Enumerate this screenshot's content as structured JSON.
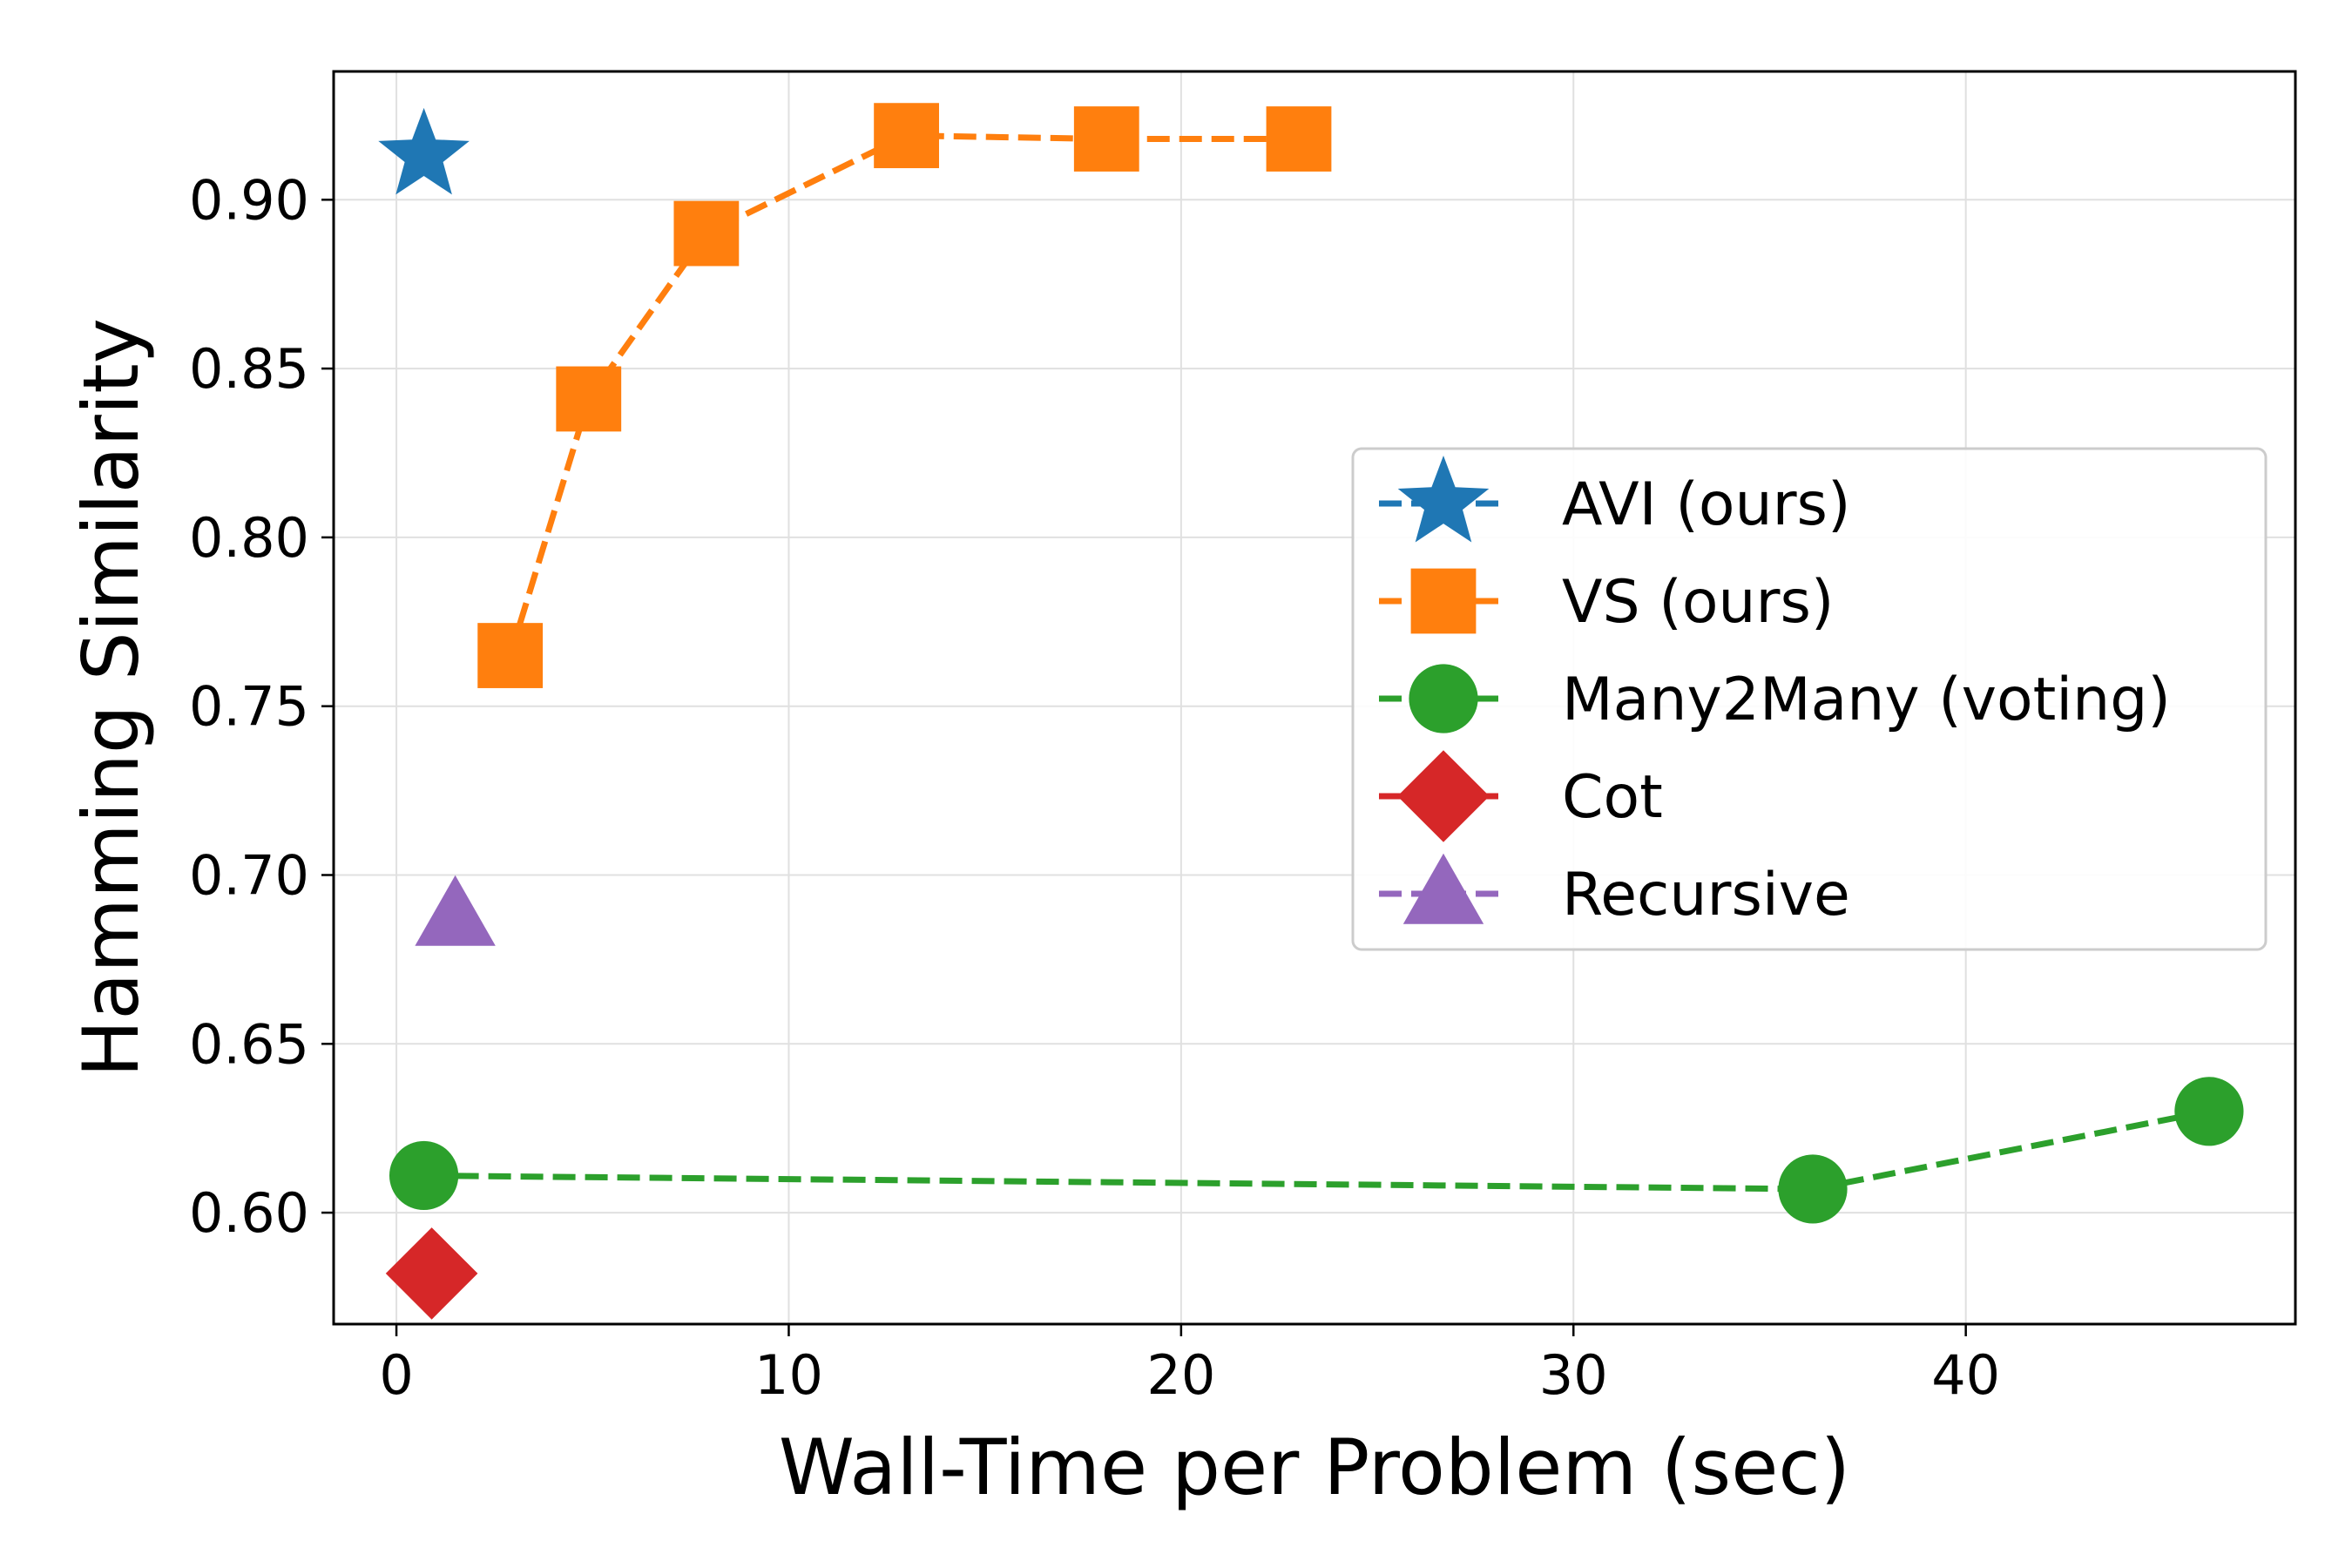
{
  "chart_data": {
    "type": "scatter",
    "title": "",
    "xlabel": "Wall-Time per Problem (sec)",
    "ylabel": "Hamming Similarity",
    "xlim": [
      -1.6,
      48.4
    ],
    "ylim": [
      0.567,
      0.938
    ],
    "xticks": [
      0,
      10,
      20,
      30,
      40
    ],
    "yticks": [
      0.6,
      0.65,
      0.7,
      0.75,
      0.8,
      0.85,
      0.9
    ],
    "xtick_labels": [
      "0",
      "10",
      "20",
      "30",
      "40"
    ],
    "ytick_labels": [
      "0.60",
      "0.65",
      "0.70",
      "0.75",
      "0.80",
      "0.85",
      "0.90"
    ],
    "grid": true,
    "legend_position": "center-right",
    "series": [
      {
        "name": "AVI (ours)",
        "color": "#1f77b4",
        "marker": "star",
        "line": false,
        "points": [
          {
            "x": 0.7,
            "y": 0.913
          }
        ]
      },
      {
        "name": "VS (ours)",
        "color": "#ff7f0e",
        "marker": "square",
        "line": true,
        "points": [
          {
            "x": 2.9,
            "y": 0.765
          },
          {
            "x": 4.9,
            "y": 0.841
          },
          {
            "x": 7.9,
            "y": 0.89
          },
          {
            "x": 13.0,
            "y": 0.919
          },
          {
            "x": 18.1,
            "y": 0.918
          },
          {
            "x": 23.0,
            "y": 0.918
          }
        ]
      },
      {
        "name": "Many2Many (voting)",
        "color": "#2ca02c",
        "marker": "circle",
        "line": true,
        "points": [
          {
            "x": 0.7,
            "y": 0.611
          },
          {
            "x": 36.1,
            "y": 0.607
          },
          {
            "x": 46.2,
            "y": 0.63
          }
        ]
      },
      {
        "name": "Cot",
        "color": "#d62728",
        "marker": "diamond",
        "line": false,
        "points": [
          {
            "x": 0.9,
            "y": 0.582
          }
        ]
      },
      {
        "name": "Recursive",
        "color": "#9467bd",
        "marker": "triangle",
        "line": false,
        "points": [
          {
            "x": 1.5,
            "y": 0.688
          }
        ]
      }
    ]
  }
}
